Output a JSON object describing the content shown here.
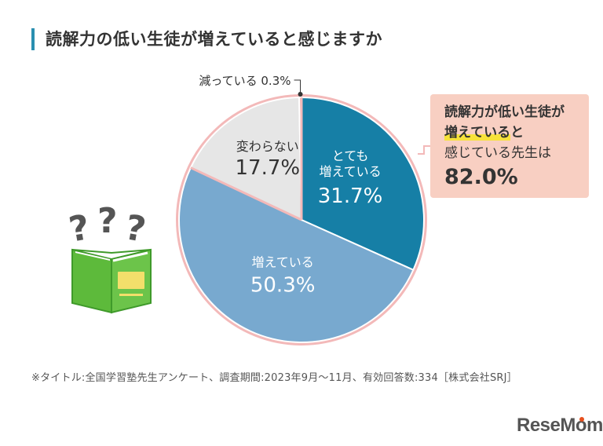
{
  "title": "読解力の低い生徒が増えていると感じますか",
  "callout": {
    "line1": "読解力が低い生徒が",
    "line2_highlight": "増えている",
    "line2_rest": "と",
    "line3": "感じている先生は",
    "value": "82.0%"
  },
  "footnote": "※タイトル:全国学習塾先生アンケート、調査期間:2023年9月～11月、有効回答数:334［株式会社SRJ］",
  "logo": "ReseMom",
  "colors": {
    "accent": "#2a8fb0",
    "totemo": "#167fa6",
    "fueteiru": "#78a9cf",
    "kawaranai": "#e6e6e6",
    "hetteiru": "#f4a6a6",
    "outline": "#f3b9b9",
    "callout_bg": "#f8cfc2"
  },
  "icons": [
    "book-icon",
    "question-mark-icon"
  ],
  "chart_data": {
    "type": "pie",
    "slices": [
      {
        "label": "とても増えている",
        "value": 31.7,
        "display": "31.7%"
      },
      {
        "label": "増えている",
        "value": 50.3,
        "display": "50.3%"
      },
      {
        "label": "変わらない",
        "value": 17.7,
        "display": "17.7%"
      },
      {
        "label": "減っている",
        "value": 0.3,
        "display": "0.3%"
      }
    ],
    "label_lines": {
      "totemo": [
        "とても",
        "増えている"
      ],
      "fueteiru": [
        "増えている"
      ],
      "kawaranai": [
        "変わらない"
      ],
      "hetteiru": [
        "減っている"
      ]
    },
    "highlighted_total": {
      "slices": [
        "とても増えている",
        "増えている"
      ],
      "value": 82.0
    }
  }
}
